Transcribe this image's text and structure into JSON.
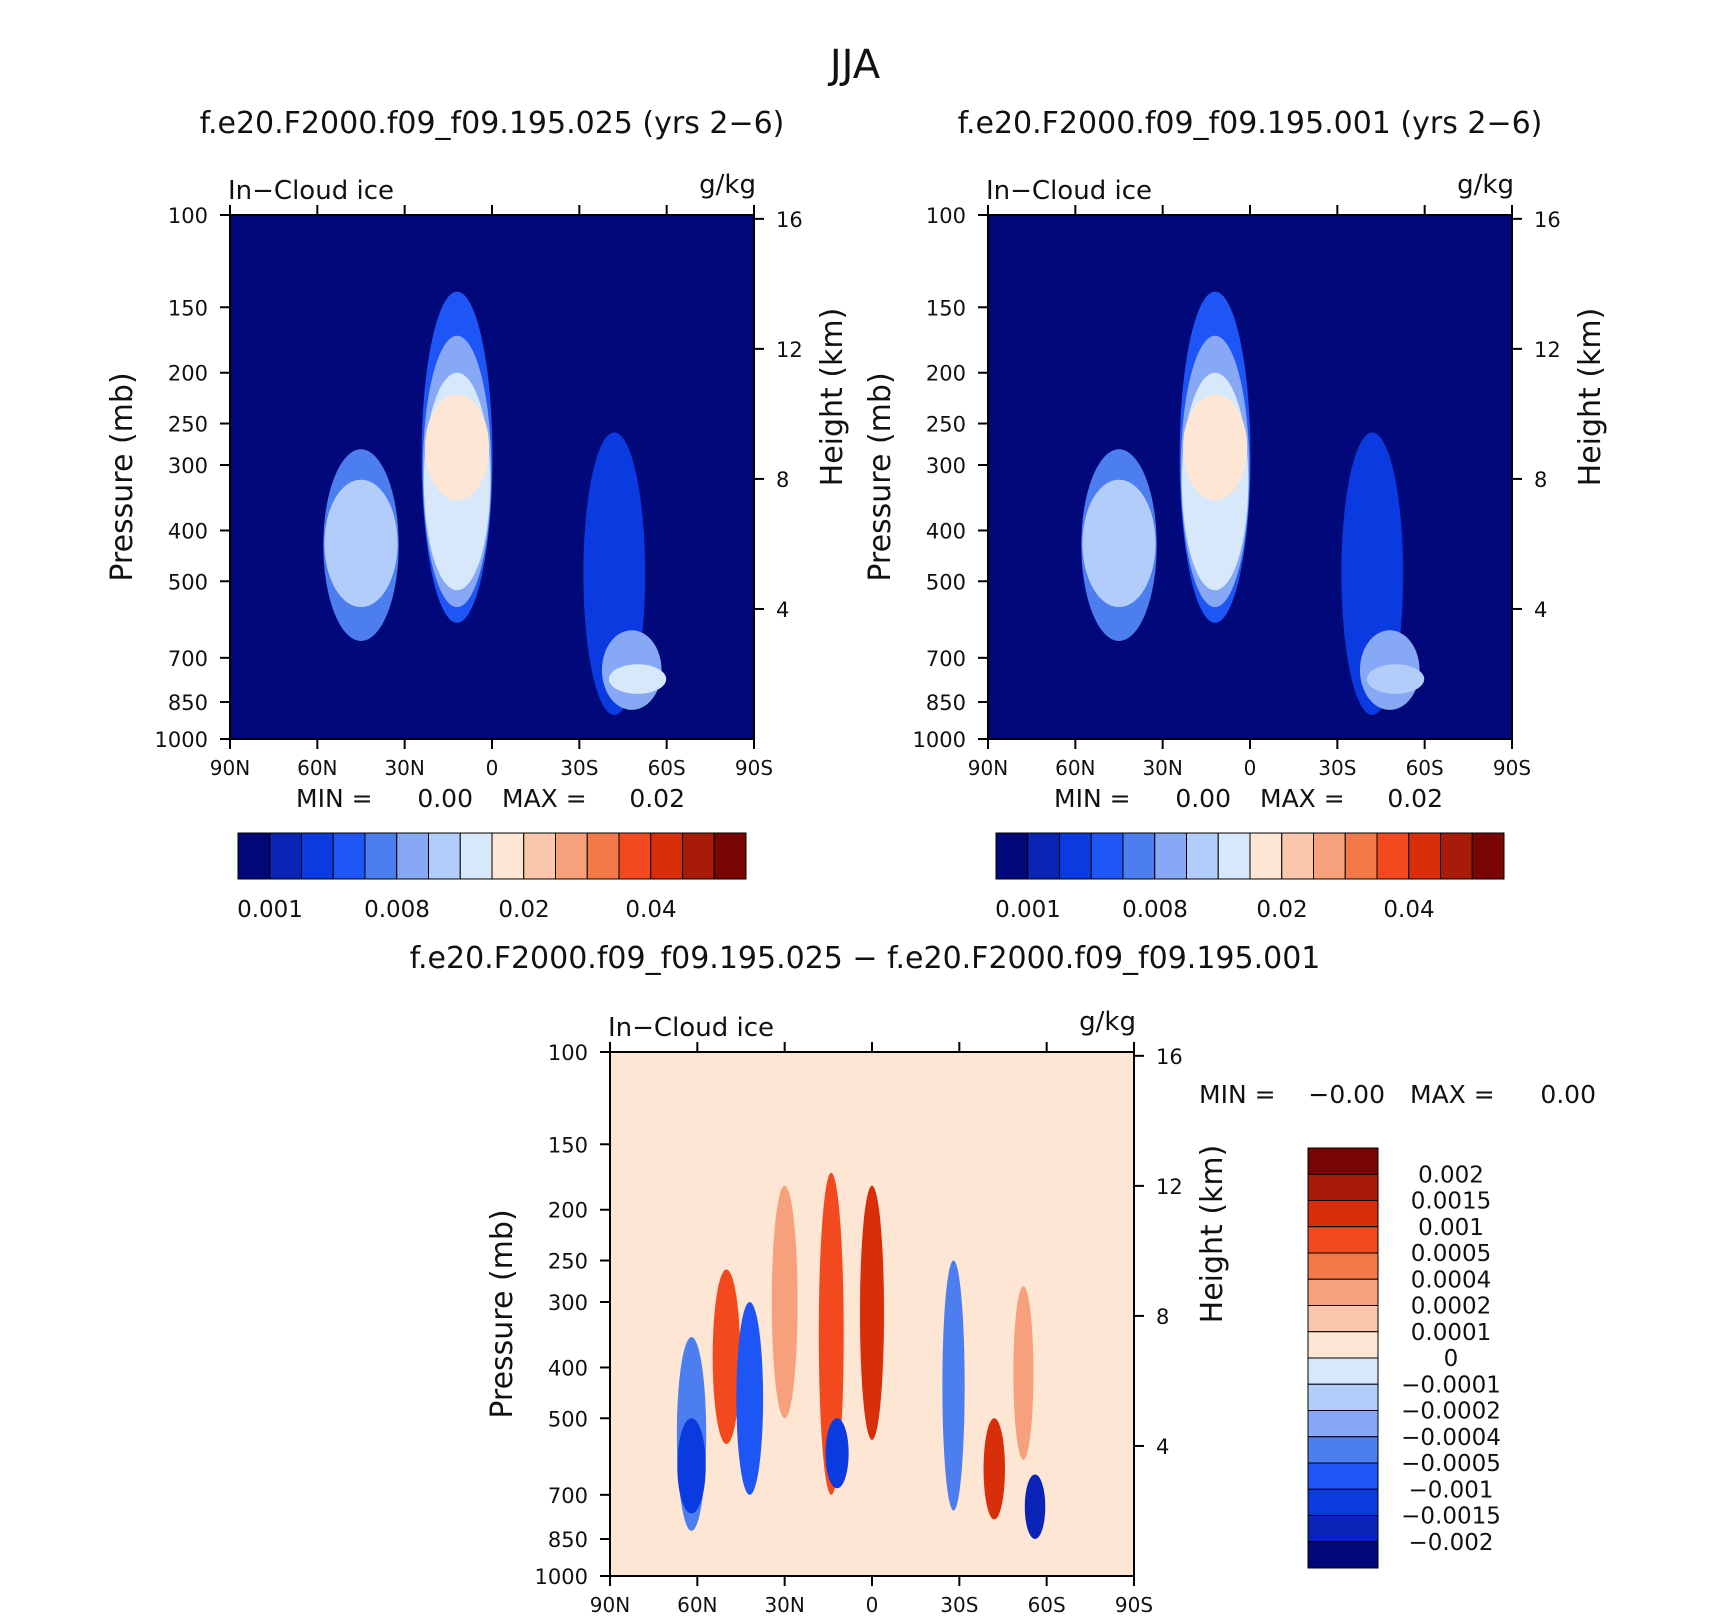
{
  "figure_title": "JJA",
  "palette": {
    "abs_levels": [
      "#00087a",
      "#0a24b8",
      "#0a3be0",
      "#1e55f5",
      "#4d7ef0",
      "#86a8f5",
      "#b3cdfa",
      "#d8e8fb",
      "#fde6d3",
      "#fac7ad",
      "#f7a07c",
      "#f37a48",
      "#f24a1e",
      "#d92e0a",
      "#a81b08",
      "#7a0505"
    ],
    "diff_levels": [
      "#00087a",
      "#0a24b8",
      "#0a3be0",
      "#1e55f5",
      "#4d7ef0",
      "#86a8f5",
      "#b3cdfa",
      "#d8e8fb",
      "#fde6d3",
      "#fac7ad",
      "#f7a07c",
      "#f37a48",
      "#f24a1e",
      "#d92e0a",
      "#a81b08",
      "#7a0505"
    ]
  },
  "chart_data": [
    {
      "type": "heatmap",
      "title": "f.e20.F2000.f09_f09.195.025 (yrs 2−6)",
      "left_label": "In−Cloud ice",
      "right_label": "g/kg",
      "ylabel": "Pressure (mb)",
      "ylabel_right": "Height (km)",
      "x_ticks": [
        "90N",
        "60N",
        "30N",
        "0",
        "30S",
        "60S",
        "90S"
      ],
      "x_values": [
        90,
        60,
        30,
        0,
        -30,
        -60,
        -90
      ],
      "y_ticks": [
        100,
        150,
        200,
        250,
        300,
        400,
        500,
        700,
        850,
        1000
      ],
      "y_right_ticks": [
        16,
        12,
        8,
        4
      ],
      "ylim": [
        1000,
        100
      ],
      "xlim": [
        90,
        -90
      ],
      "stats": {
        "min_label": "MIN =",
        "min": "0.00",
        "max_label": "MAX =",
        "max": "0.02"
      },
      "colorbar_labels": [
        "0.001",
        "0.008",
        "0.02",
        "0.04"
      ],
      "blobs": [
        {
          "lat": 45,
          "p_top": 280,
          "p_bot": 650,
          "level": 4
        },
        {
          "lat": 45,
          "p_top": 320,
          "p_bot": 560,
          "level": 6
        },
        {
          "lat": 12,
          "p_top": 140,
          "p_bot": 600,
          "level": 3
        },
        {
          "lat": 12,
          "p_top": 170,
          "p_bot": 560,
          "level": 5
        },
        {
          "lat": 12,
          "p_top": 200,
          "p_bot": 520,
          "level": 7
        },
        {
          "lat": 12,
          "p_top": 220,
          "p_bot": 350,
          "level": 8
        },
        {
          "lat": -42,
          "p_top": 260,
          "p_bot": 900,
          "level": 2
        },
        {
          "lat": -48,
          "p_top": 620,
          "p_bot": 880,
          "level": 5
        },
        {
          "lat": -50,
          "p_top": 720,
          "p_bot": 820,
          "level": 7
        }
      ]
    },
    {
      "type": "heatmap",
      "title": "f.e20.F2000.f09_f09.195.001 (yrs 2−6)",
      "left_label": "In−Cloud ice",
      "right_label": "g/kg",
      "ylabel": "Pressure (mb)",
      "ylabel_right": "Height (km)",
      "x_ticks": [
        "90N",
        "60N",
        "30N",
        "0",
        "30S",
        "60S",
        "90S"
      ],
      "x_values": [
        90,
        60,
        30,
        0,
        -30,
        -60,
        -90
      ],
      "y_ticks": [
        100,
        150,
        200,
        250,
        300,
        400,
        500,
        700,
        850,
        1000
      ],
      "y_right_ticks": [
        16,
        12,
        8,
        4
      ],
      "ylim": [
        1000,
        100
      ],
      "xlim": [
        90,
        -90
      ],
      "stats": {
        "min_label": "MIN =",
        "min": "0.00",
        "max_label": "MAX =",
        "max": "0.02"
      },
      "colorbar_labels": [
        "0.001",
        "0.008",
        "0.02",
        "0.04"
      ],
      "blobs": [
        {
          "lat": 45,
          "p_top": 280,
          "p_bot": 650,
          "level": 4
        },
        {
          "lat": 45,
          "p_top": 320,
          "p_bot": 560,
          "level": 6
        },
        {
          "lat": 12,
          "p_top": 140,
          "p_bot": 600,
          "level": 3
        },
        {
          "lat": 12,
          "p_top": 170,
          "p_bot": 560,
          "level": 5
        },
        {
          "lat": 12,
          "p_top": 200,
          "p_bot": 520,
          "level": 7
        },
        {
          "lat": 12,
          "p_top": 220,
          "p_bot": 350,
          "level": 8
        },
        {
          "lat": -42,
          "p_top": 260,
          "p_bot": 900,
          "level": 2
        },
        {
          "lat": -48,
          "p_top": 620,
          "p_bot": 880,
          "level": 5
        },
        {
          "lat": -50,
          "p_top": 720,
          "p_bot": 820,
          "level": 6
        }
      ]
    },
    {
      "type": "heatmap",
      "title": "f.e20.F2000.f09_f09.195.025 − f.e20.F2000.f09_f09.195.001",
      "left_label": "In−Cloud ice",
      "right_label": "g/kg",
      "ylabel": "Pressure (mb)",
      "ylabel_right": "Height (km)",
      "x_ticks": [
        "90N",
        "60N",
        "30N",
        "0",
        "30S",
        "60S",
        "90S"
      ],
      "x_values": [
        90,
        60,
        30,
        0,
        -30,
        -60,
        -90
      ],
      "y_ticks": [
        100,
        150,
        200,
        250,
        300,
        400,
        500,
        700,
        850,
        1000
      ],
      "y_right_ticks": [
        16,
        12,
        8,
        4
      ],
      "ylim": [
        1000,
        100
      ],
      "xlim": [
        90,
        -90
      ],
      "stats": {
        "min_label": "MIN =",
        "min": "−0.00",
        "max_label": "MAX =",
        "max": "0.00"
      },
      "colorbar_labels": [
        "0.002",
        "0.0015",
        "0.001",
        "0.0005",
        "0.0004",
        "0.0002",
        "0.0001",
        "0",
        "−0.0001",
        "−0.0002",
        "−0.0004",
        "−0.0005",
        "−0.001",
        "−0.0015",
        "−0.002"
      ],
      "blobs": [
        {
          "lat": 62,
          "p_top": 350,
          "p_bot": 820,
          "level": 4
        },
        {
          "lat": 62,
          "p_top": 500,
          "p_bot": 760,
          "level": 2
        },
        {
          "lat": 50,
          "p_top": 260,
          "p_bot": 560,
          "level": 12
        },
        {
          "lat": 42,
          "p_top": 300,
          "p_bot": 700,
          "level": 3
        },
        {
          "lat": 30,
          "p_top": 180,
          "p_bot": 500,
          "level": 10
        },
        {
          "lat": 14,
          "p_top": 170,
          "p_bot": 700,
          "level": 12
        },
        {
          "lat": 0,
          "p_top": 180,
          "p_bot": 550,
          "level": 13
        },
        {
          "lat": 12,
          "p_top": 500,
          "p_bot": 680,
          "level": 2
        },
        {
          "lat": -28,
          "p_top": 250,
          "p_bot": 750,
          "level": 4
        },
        {
          "lat": -42,
          "p_top": 500,
          "p_bot": 780,
          "level": 13
        },
        {
          "lat": -56,
          "p_top": 640,
          "p_bot": 850,
          "level": 1
        },
        {
          "lat": -52,
          "p_top": 280,
          "p_bot": 600,
          "level": 10
        }
      ]
    }
  ]
}
